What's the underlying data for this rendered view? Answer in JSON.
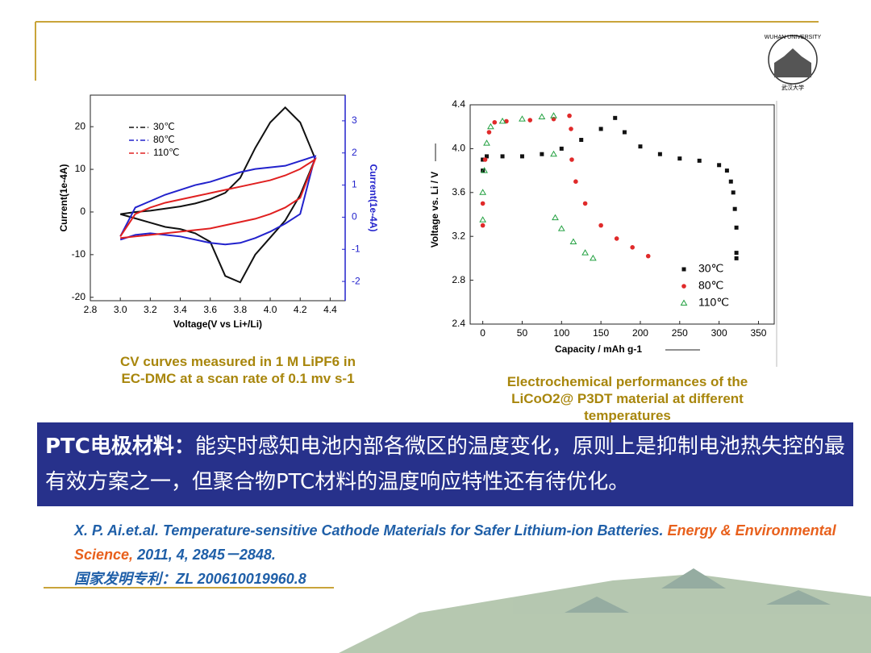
{
  "slide": {
    "logo_text": "WUHAN UNIVERSITY",
    "logo_sub": "武汉大学",
    "caption_left": [
      "CV curves measured in 1 M LiPF6 in",
      "EC-DMC at a scan rate of 0.1 mv s-1"
    ],
    "caption_right": [
      "Electrochemical performances of the",
      "LiCoO2@ P3DT material at different",
      "temperatures"
    ],
    "banner_lead": "PTC电极材料：",
    "banner_text": "能实时感知电池内部各微区的温度变化，原则上是抑制电池热失控的最有效方案之一，但聚合物PTC材料的温度响应特性还有待优化。",
    "reference_authors": "X. P. Ai.et.al. Temperature-sensitive Cathode Materials for Safer Lithium-ion Batteries.",
    "reference_journal": "Energy & Environmental Science,",
    "reference_details": "2011, 4, 2845－2848.",
    "patent": "国家发明专利：ZL 200610019960.8"
  },
  "chart_data": [
    {
      "type": "line",
      "x_label": "Voltage(V vs Li+/Li)",
      "y_label": "Current(1e-4A)",
      "y2_label": "Current(1e-4A)",
      "x": [
        3.0,
        3.1,
        3.2,
        3.3,
        3.4,
        3.5,
        3.6,
        3.7,
        3.8,
        3.9,
        4.0,
        4.1,
        4.2,
        4.3,
        4.2,
        4.1,
        4.0,
        3.9,
        3.8,
        3.7,
        3.6,
        3.5,
        3.4,
        3.3,
        3.2,
        3.1,
        3.0
      ],
      "xlim": [
        2.8,
        4.5
      ],
      "xticks": [
        2.8,
        {
          "value": 3,
          "label": "3.0"
        },
        3.2,
        3.4,
        3.6,
        3.8,
        {
          "value": 4,
          "label": "4.0"
        },
        4.2,
        4.4
      ],
      "ylim": [
        -20.8,
        27.4
      ],
      "yticks": [
        -20,
        -10,
        0,
        10,
        20
      ],
      "y2lim": [
        -2.6,
        3.8
      ],
      "y2ticks": [
        -2,
        -1,
        0,
        1,
        2,
        3
      ],
      "y2_color": "#2222cc",
      "legend": "upper left",
      "series": [
        {
          "name": "30℃",
          "color": "#111111",
          "values": [
            -0.5,
            0,
            0.3,
            0.8,
            1.3,
            2,
            3,
            4.5,
            8,
            15,
            21,
            24.5,
            21,
            12.5,
            4,
            -2,
            -6,
            -10,
            -16.5,
            -15,
            -7,
            -5,
            -4,
            -3.5,
            -2.5,
            -1.5,
            -0.5
          ]
        },
        {
          "name": "80℃",
          "color": "#2222cc",
          "axis": "y2",
          "values": [
            -0.6,
            0.3,
            0.5,
            0.7,
            0.85,
            1.0,
            1.1,
            1.25,
            1.4,
            1.5,
            1.55,
            1.6,
            1.75,
            1.9,
            0.1,
            -0.2,
            -0.45,
            -0.65,
            -0.8,
            -0.85,
            -0.8,
            -0.7,
            -0.6,
            -0.55,
            -0.5,
            -0.55,
            -0.7
          ]
        },
        {
          "name": "110℃",
          "color": "#e02020",
          "axis": "y2",
          "values": [
            -0.6,
            0.1,
            0.3,
            0.45,
            0.55,
            0.65,
            0.75,
            0.85,
            0.95,
            1.05,
            1.15,
            1.3,
            1.5,
            1.8,
            0.6,
            0.3,
            0.1,
            -0.05,
            -0.15,
            -0.25,
            -0.35,
            -0.4,
            -0.45,
            -0.5,
            -0.55,
            -0.6,
            -0.65
          ]
        }
      ]
    },
    {
      "type": "scatter",
      "x_label": "Capacity / mAh g-1",
      "y_label": "Voltage vs. Li / V",
      "xlim": [
        -16,
        370
      ],
      "xticks": [
        0,
        50,
        100,
        150,
        200,
        250,
        300,
        350
      ],
      "ylim": [
        2.4,
        4.4
      ],
      "yticks": [
        2.4,
        2.8,
        3.2,
        3.6,
        {
          "value": 4,
          "label": "4.0"
        },
        4.4
      ],
      "legend": "lower right",
      "series": [
        {
          "name": "30℃",
          "color": "#111111",
          "marker": "square",
          "x": [
            0,
            0,
            5,
            25,
            50,
            75,
            100,
            125,
            150,
            168,
            180,
            200,
            225,
            250,
            275,
            300,
            310,
            315,
            318,
            320,
            322,
            322,
            322
          ],
          "values": [
            3.8,
            3.9,
            3.93,
            3.93,
            3.93,
            3.95,
            4.0,
            4.08,
            4.18,
            4.28,
            4.15,
            4.02,
            3.95,
            3.91,
            3.89,
            3.85,
            3.8,
            3.7,
            3.6,
            3.45,
            3.28,
            3.05,
            3.0
          ]
        },
        {
          "name": "80℃",
          "color": "#e02a2a",
          "marker": "circle",
          "x": [
            0,
            0,
            3,
            8,
            15,
            30,
            60,
            90,
            110,
            112,
            113,
            118,
            130,
            150,
            170,
            190,
            210
          ],
          "values": [
            3.3,
            3.5,
            3.9,
            4.15,
            4.24,
            4.25,
            4.26,
            4.27,
            4.3,
            4.18,
            3.9,
            3.7,
            3.5,
            3.3,
            3.18,
            3.1,
            3.02
          ]
        },
        {
          "name": "110℃",
          "color": "#22a040",
          "marker": "triangle",
          "x": [
            0,
            0,
            2,
            5,
            10,
            25,
            50,
            75,
            90,
            90,
            92,
            100,
            115,
            130,
            140
          ],
          "values": [
            3.35,
            3.6,
            3.8,
            4.05,
            4.2,
            4.25,
            4.27,
            4.29,
            4.3,
            3.95,
            3.37,
            3.27,
            3.15,
            3.05,
            3.0
          ]
        }
      ]
    }
  ]
}
